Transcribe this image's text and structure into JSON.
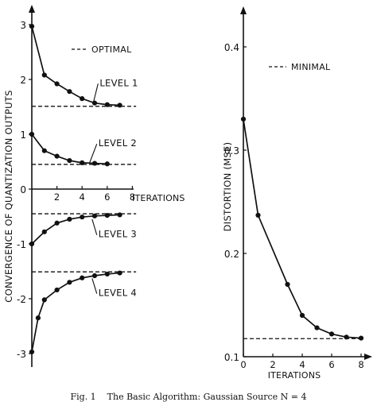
{
  "caption": "Fig. 1    The Basic Algorithm: Gaussian Source N = 4",
  "chart_data": [
    {
      "type": "line",
      "ylabel": "CONVERGENCE OF QUANTIZATION OUTPUTS",
      "xlabel": "ITERATIONS",
      "xlim": [
        0,
        8
      ],
      "ylim": [
        -3,
        3
      ],
      "x_ticks": [
        2,
        4,
        6,
        8
      ],
      "y_ticks": [
        3,
        2,
        1,
        0,
        -1,
        -2,
        -3
      ],
      "legend": {
        "label": "OPTIMAL",
        "style": "dashed",
        "placement": "top"
      },
      "series": [
        {
          "name": "LEVEL 1",
          "optimal": 1.51,
          "x": [
            0,
            1,
            2,
            3,
            4,
            5,
            6,
            7
          ],
          "y": [
            2.97,
            2.08,
            1.92,
            1.78,
            1.65,
            1.57,
            1.54,
            1.53
          ]
        },
        {
          "name": "LEVEL 2",
          "optimal": 0.45,
          "x": [
            0,
            1,
            2,
            3,
            4,
            5,
            6
          ],
          "y": [
            1.0,
            0.7,
            0.6,
            0.52,
            0.48,
            0.47,
            0.46
          ]
        },
        {
          "name": "LEVEL 3",
          "optimal": -0.45,
          "x": [
            0,
            1,
            2,
            3,
            4,
            5,
            6,
            7
          ],
          "y": [
            -1.0,
            -0.78,
            -0.62,
            -0.55,
            -0.51,
            -0.49,
            -0.48,
            -0.47
          ]
        },
        {
          "name": "LEVEL 4",
          "optimal": -1.51,
          "x": [
            0,
            0.5,
            1,
            2,
            3,
            4,
            5,
            6,
            7
          ],
          "y": [
            -2.97,
            -2.35,
            -2.02,
            -1.84,
            -1.7,
            -1.62,
            -1.58,
            -1.55,
            -1.53
          ]
        }
      ]
    },
    {
      "type": "line",
      "ylabel": "DISTORTION (MSE)",
      "xlabel": "ITERATIONS",
      "xlim": [
        0,
        8
      ],
      "ylim": [
        0.1,
        0.4
      ],
      "x_ticks": [
        0,
        2,
        4,
        6,
        8
      ],
      "y_ticks": [
        0.4,
        0.3,
        0.2,
        0.1
      ],
      "legend": {
        "label": "MINIMAL",
        "style": "dashed",
        "placement": "top"
      },
      "minimal": 0.1175,
      "series": [
        {
          "x": [
            0,
            1,
            3,
            4,
            5,
            6,
            7,
            8
          ],
          "y": [
            0.33,
            0.237,
            0.17,
            0.14,
            0.128,
            0.122,
            0.119,
            0.118
          ]
        }
      ]
    }
  ]
}
